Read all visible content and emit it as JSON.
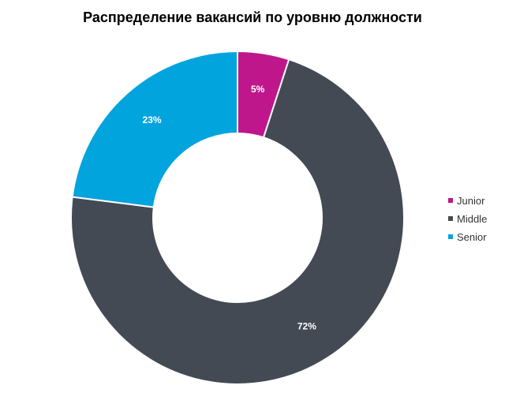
{
  "chart_data": {
    "type": "pie",
    "variant": "donut",
    "title": "Распределение вакансий по уровню должности",
    "slices": [
      {
        "label": "Junior",
        "value": 5,
        "display": "5%",
        "color": "#c0168c"
      },
      {
        "label": "Middle",
        "value": 72,
        "display": "72%",
        "color": "#434a54"
      },
      {
        "label": "Senior",
        "value": 23,
        "display": "23%",
        "color": "#02a4de"
      }
    ],
    "start_angle": "12 o'clock",
    "direction": "clockwise",
    "legend_position": "right",
    "label_color": "#ffffff"
  }
}
